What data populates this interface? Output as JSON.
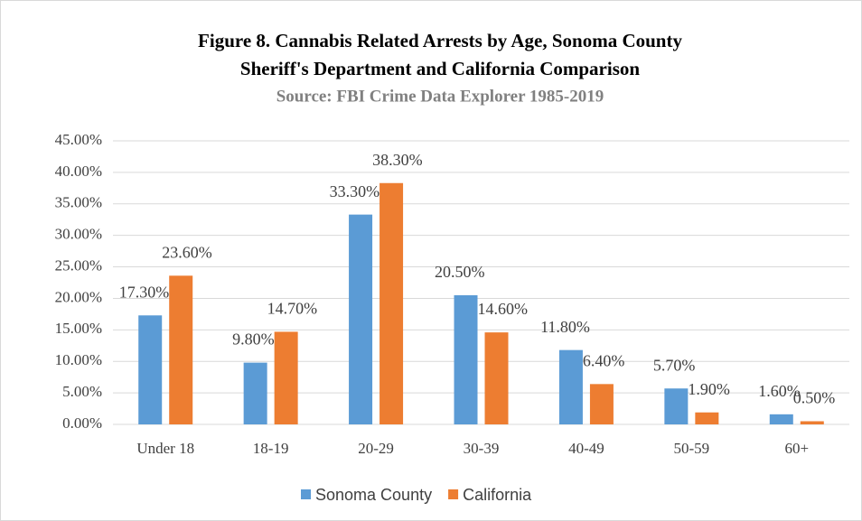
{
  "chart_data": {
    "type": "bar",
    "title": [
      "Figure 8. Cannabis  Related  Arrests by Age, Sonoma County",
      "Sheriff's Department  and California Comparison"
    ],
    "subtitle": "Source: FBI  Crime  Data  Explorer  1985-2019",
    "categories": [
      "Under 18",
      "18-19",
      "20-29",
      "30-39",
      "40-49",
      "50-59",
      "60+"
    ],
    "series": [
      {
        "name": "Sonoma County",
        "color": "#5b9bd5",
        "values": [
          17.3,
          9.8,
          33.3,
          20.5,
          11.8,
          5.7,
          1.6
        ],
        "value_labels": [
          "17.30%",
          "9.80%",
          "33.30%",
          "20.50%",
          "11.80%",
          "5.70%",
          "1.60%"
        ]
      },
      {
        "name": "California",
        "color": "#ed7d31",
        "values": [
          23.6,
          14.7,
          38.3,
          14.6,
          6.4,
          1.9,
          0.5
        ],
        "value_labels": [
          "23.60%",
          "14.70%",
          "38.30%",
          "14.60%",
          "6.40%",
          "1.90%",
          "0.50%"
        ]
      }
    ],
    "ylim": [
      0,
      45
    ],
    "yticks": [
      {
        "value": 0,
        "label": "0.00%"
      },
      {
        "value": 5,
        "label": "5.00%"
      },
      {
        "value": 10,
        "label": "10.00%"
      },
      {
        "value": 15,
        "label": "15.00%"
      },
      {
        "value": 20,
        "label": "20.00%"
      },
      {
        "value": 25,
        "label": "25.00%"
      },
      {
        "value": 30,
        "label": "30.00%"
      },
      {
        "value": 35,
        "label": "35.00%"
      },
      {
        "value": 40,
        "label": "40.00%"
      },
      {
        "value": 45,
        "label": "45.00%"
      }
    ],
    "grid": true,
    "legend": "bottom"
  }
}
